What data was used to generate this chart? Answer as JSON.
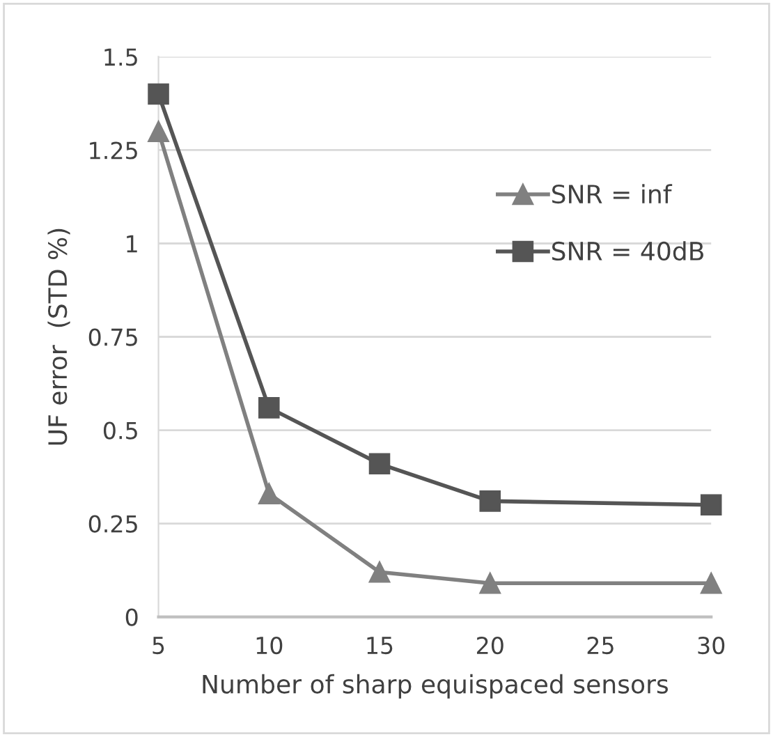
{
  "chart_data": {
    "type": "line",
    "xlabel": "Number of sharp equispaced sensors",
    "ylabel": "UF error  (STD %)",
    "xlim": [
      5,
      30
    ],
    "xticks": [
      5,
      10,
      15,
      20,
      25,
      30
    ],
    "ylim": [
      0,
      1.5
    ],
    "yticks": [
      0,
      {
        "value": 0.25,
        "label": "0.25"
      },
      {
        "value": 0.5,
        "label": "0.5"
      },
      {
        "value": 0.75,
        "label": "0.75"
      },
      1,
      {
        "value": 1.25,
        "label": "1.25"
      },
      {
        "value": 1.5,
        "label": "1.5"
      }
    ],
    "grid": "y",
    "legend": "right",
    "line_style": "solid",
    "series": [
      {
        "name": "SNR = inf",
        "color": "#808080",
        "marker": "triangle",
        "x": [
          5,
          10,
          15,
          20,
          30
        ],
        "values": [
          1.3,
          0.33,
          0.12,
          0.09,
          0.09
        ]
      },
      {
        "name": "SNR = 40dB",
        "color": "#555555",
        "marker": "square",
        "x": [
          5,
          10,
          15,
          20,
          30
        ],
        "values": [
          1.4,
          0.56,
          0.41,
          0.31,
          0.3
        ]
      }
    ]
  }
}
